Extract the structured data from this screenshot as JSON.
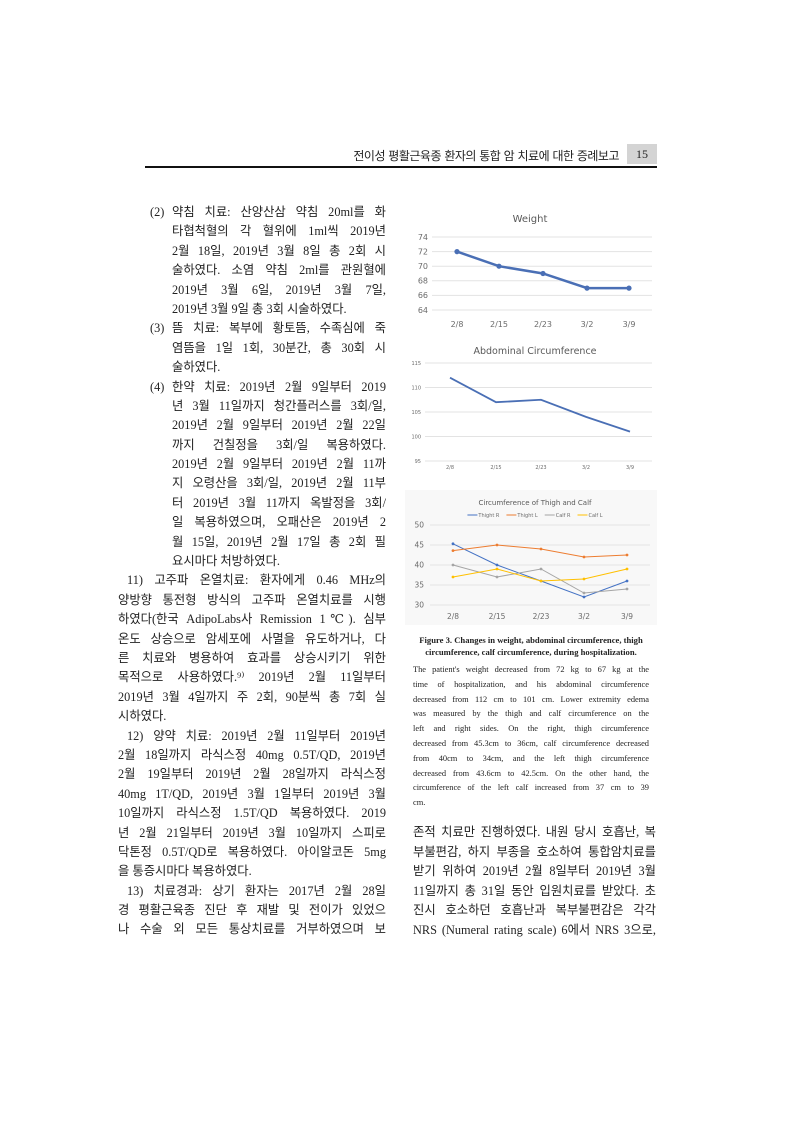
{
  "header": {
    "title": "전이성 평활근육종 환자의 통합 암 치료에 대한 증례보고",
    "page": "15"
  },
  "left": {
    "list_items": [
      {
        "label": "(2)",
        "lines": [
          "약침 치료: 산양산삼 약침 20ml를 화",
          "타협척혈의 각 혈위에 1ml씩 2019년",
          "2월 18일, 2019년 3월 8일 총 2회 시",
          "술하였다. 소염 약침 2ml를 관원혈에",
          "2019년 3월 6일, 2019년 3월 7일,",
          "2019년 3월 9일 총 3회 시술하였다."
        ]
      },
      {
        "label": "(3)",
        "lines": [
          "뜸 치료: 복부에 황토뜸, 수족심에 죽",
          "염뜸을 1일 1회, 30분간, 총 30회 시",
          "술하였다."
        ]
      },
      {
        "label": "(4)",
        "lines": [
          "한약 치료: 2019년 2월 9일부터 2019",
          "년 3월 11일까지 청간플러스를 3회/일,",
          "2019년 2월 9일부터 2019년 2월 22일",
          "까지 건칠정을 3회/일 복용하였다.",
          "2019년 2월 9일부터 2019년 2월 11까",
          "지 오령산을 3회/일, 2019년 2월 11부",
          "터 2019년 3월 11까지 옥발정을 3회/",
          "일 복용하였으며, 오패산은 2019년 2",
          "월 15일, 2019년 2월 17일 총 2회 필",
          "요시마다 처방하였다."
        ]
      }
    ],
    "paragraphs": [
      {
        "lines": [
          "11) 고주파 온열치료: 환자에게 0.46 MHz의",
          "양방향 통전형 방식의 고주파 온열치료를 시행",
          "하였다(한국 AdipoLabs사 Remission 1℃). 심부",
          "온도 상승으로 암세포에 사멸을 유도하거나, 다",
          "른 치료와 병용하여 효과를 상승시키기 위한",
          "목적으로 사용하였다.⁹⁾ 2019년 2월 11일부터",
          "2019년 3월 4일까지 주 2회, 90분씩 총 7회 실",
          "시하였다."
        ]
      },
      {
        "lines": [
          "12) 양약 치료: 2019년 2월 11일부터 2019년",
          "2월 18일까지 라식스정 40mg 0.5T/QD, 2019년",
          "2월 19일부터 2019년 2월 28일까지 라식스정",
          "40mg 1T/QD, 2019년 3월 1일부터 2019년 3월",
          "10일까지 라식스정 1.5T/QD 복용하였다. 2019",
          "년 2월 21일부터 2019년 3월 10일까지 스피로",
          "닥톤정 0.5T/QD로 복용하였다. 아이알코돈 5mg",
          "을 통증시마다 복용하였다."
        ]
      },
      {
        "lines": [
          "13) 치료경과: 상기 환자는 2017년 2월 28일",
          "경 평활근육종 진단 후 재발 및 전이가 있었으",
          "나 수술 외 모든 통상치료를 거부하였으며 보"
        ]
      }
    ]
  },
  "right": {
    "lines": [
      "존적 치료만 진행하였다. 내원 당시 호흡난, 복",
      "부불편감, 하지 부종을 호소하여 통합암치료를",
      "받기 위하여 2019년 2월 8일부터 2019년 3월",
      "11일까지 총 31일 동안 입원치료를 받았다. 초",
      "진시 호소하던 호흡난과 복부불편감은 각각",
      "NRS (Numeral rating scale) 6에서 NRS 3으로,"
    ]
  },
  "figure": {
    "caption": "Figure 3. Changes in weight, abdominal circumference, thigh circumference, calf circumference, during hospitalization.",
    "body_lines": [
      "The patient's weight decreased from 72 kg to 67 kg at the",
      "time of hospitalization, and his abdominal circumference",
      "decreased from 112 cm to 101 cm. Lower extremity edema",
      "was measured by the thigh and calf circumference on the",
      "left and right sides. On the right, thigh circumference",
      "decreased from 45.3cm to 36cm, calf circumference decreased",
      "from 40cm to 34cm, and the left thigh circumference",
      "decreased from 43.6cm to 42.5cm. On the other hand, the",
      "circumference of the left calf increased from 37 cm to 39",
      "cm."
    ]
  },
  "chart_data": [
    {
      "type": "line",
      "title": "Weight",
      "categories": [
        "2/8",
        "2/15",
        "2/23",
        "3/2",
        "3/9"
      ],
      "series": [
        {
          "values": [
            72,
            70,
            69,
            67,
            67
          ],
          "color": "#4a6fb5"
        }
      ],
      "ylim": [
        64,
        74
      ],
      "yticks": [
        "64",
        "66",
        "68",
        "70",
        "72",
        "74"
      ],
      "grid": true,
      "markers": true
    },
    {
      "type": "line",
      "title": "Abdominal Circumference",
      "categories": [
        "2/8",
        "2/15",
        "2/23",
        "3/2",
        "3/9"
      ],
      "series": [
        {
          "values": [
            112,
            107,
            107.5,
            104,
            101
          ],
          "color": "#4a6fb5"
        }
      ],
      "ylim": [
        95,
        115
      ],
      "yticks": [
        "95",
        "100",
        "105",
        "110",
        "115"
      ],
      "grid": true,
      "markers": false
    },
    {
      "type": "line",
      "title": "Circumference of Thigh and Calf",
      "categories": [
        "2/8",
        "2/15",
        "2/23",
        "3/2",
        "3/9"
      ],
      "series": [
        {
          "name": "Thight R",
          "values": [
            45.3,
            40,
            36,
            32,
            36
          ],
          "color": "#4472c4"
        },
        {
          "name": "Thight L",
          "values": [
            43.6,
            45,
            44,
            42,
            42.5
          ],
          "color": "#ed7d31"
        },
        {
          "name": "Calf R",
          "values": [
            40,
            37,
            39,
            33,
            34
          ],
          "color": "#a5a5a5"
        },
        {
          "name": "Calf L",
          "values": [
            37,
            39,
            36,
            36.5,
            39
          ],
          "color": "#ffc000"
        }
      ],
      "ylim": [
        30,
        50
      ],
      "yticks": [
        "30",
        "35",
        "40",
        "45",
        "50"
      ],
      "grid": true,
      "legend": "top",
      "markers": true
    }
  ]
}
